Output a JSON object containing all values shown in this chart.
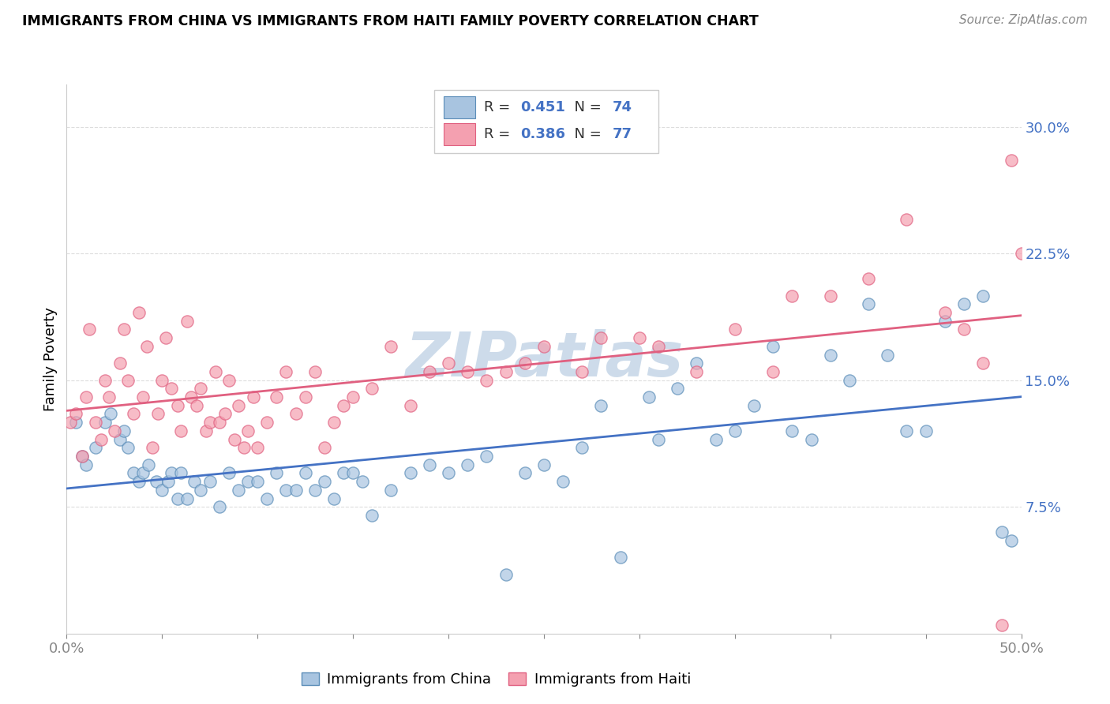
{
  "title": "IMMIGRANTS FROM CHINA VS IMMIGRANTS FROM HAITI FAMILY POVERTY CORRELATION CHART",
  "source": "Source: ZipAtlas.com",
  "ylabel": "Family Poverty",
  "yticks": [
    7.5,
    15.0,
    22.5,
    30.0
  ],
  "ytick_labels": [
    "7.5%",
    "15.0%",
    "22.5%",
    "30.0%"
  ],
  "xlim": [
    0.0,
    50.0
  ],
  "ylim": [
    0.0,
    32.5
  ],
  "china_R": 0.451,
  "china_N": 74,
  "haiti_R": 0.386,
  "haiti_N": 77,
  "china_color": "#A8C4E0",
  "haiti_color": "#F4A0B0",
  "china_edge_color": "#5B8DB8",
  "haiti_edge_color": "#E06080",
  "china_line_color": "#4472C4",
  "haiti_line_color": "#E06080",
  "watermark_color": "#C8D8E8",
  "background_color": "#FFFFFF",
  "grid_color": "#DDDDDD",
  "china_points_x": [
    0.5,
    0.8,
    1.0,
    1.5,
    2.0,
    2.3,
    2.8,
    3.0,
    3.2,
    3.5,
    3.8,
    4.0,
    4.3,
    4.7,
    5.0,
    5.3,
    5.5,
    5.8,
    6.0,
    6.3,
    6.7,
    7.0,
    7.5,
    8.0,
    8.5,
    9.0,
    9.5,
    10.0,
    10.5,
    11.0,
    11.5,
    12.0,
    12.5,
    13.0,
    13.5,
    14.0,
    14.5,
    15.0,
    15.5,
    16.0,
    17.0,
    18.0,
    19.0,
    20.0,
    21.0,
    22.0,
    23.0,
    24.0,
    25.0,
    26.0,
    27.0,
    28.0,
    29.0,
    30.5,
    31.0,
    32.0,
    33.0,
    34.0,
    35.0,
    36.0,
    37.0,
    38.0,
    39.0,
    40.0,
    41.0,
    42.0,
    43.0,
    44.0,
    45.0,
    46.0,
    47.0,
    48.0,
    49.0,
    49.5
  ],
  "china_points_y": [
    12.5,
    10.5,
    10.0,
    11.0,
    12.5,
    13.0,
    11.5,
    12.0,
    11.0,
    9.5,
    9.0,
    9.5,
    10.0,
    9.0,
    8.5,
    9.0,
    9.5,
    8.0,
    9.5,
    8.0,
    9.0,
    8.5,
    9.0,
    7.5,
    9.5,
    8.5,
    9.0,
    9.0,
    8.0,
    9.5,
    8.5,
    8.5,
    9.5,
    8.5,
    9.0,
    8.0,
    9.5,
    9.5,
    9.0,
    7.0,
    8.5,
    9.5,
    10.0,
    9.5,
    10.0,
    10.5,
    3.5,
    9.5,
    10.0,
    9.0,
    11.0,
    13.5,
    4.5,
    14.0,
    11.5,
    14.5,
    16.0,
    11.5,
    12.0,
    13.5,
    17.0,
    12.0,
    11.5,
    16.5,
    15.0,
    19.5,
    16.5,
    12.0,
    12.0,
    18.5,
    19.5,
    20.0,
    6.0,
    5.5
  ],
  "haiti_points_x": [
    0.2,
    0.5,
    0.8,
    1.0,
    1.2,
    1.5,
    1.8,
    2.0,
    2.2,
    2.5,
    2.8,
    3.0,
    3.2,
    3.5,
    3.8,
    4.0,
    4.2,
    4.5,
    4.8,
    5.0,
    5.2,
    5.5,
    5.8,
    6.0,
    6.3,
    6.5,
    6.8,
    7.0,
    7.3,
    7.5,
    7.8,
    8.0,
    8.3,
    8.5,
    8.8,
    9.0,
    9.3,
    9.5,
    9.8,
    10.0,
    10.5,
    11.0,
    11.5,
    12.0,
    12.5,
    13.0,
    13.5,
    14.0,
    14.5,
    15.0,
    16.0,
    17.0,
    18.0,
    19.0,
    20.0,
    21.0,
    22.0,
    23.0,
    24.0,
    25.0,
    27.0,
    28.0,
    30.0,
    31.0,
    33.0,
    35.0,
    37.0,
    38.0,
    40.0,
    42.0,
    44.0,
    46.0,
    47.0,
    48.0,
    49.0,
    49.5,
    50.0
  ],
  "haiti_points_y": [
    12.5,
    13.0,
    10.5,
    14.0,
    18.0,
    12.5,
    11.5,
    15.0,
    14.0,
    12.0,
    16.0,
    18.0,
    15.0,
    13.0,
    19.0,
    14.0,
    17.0,
    11.0,
    13.0,
    15.0,
    17.5,
    14.5,
    13.5,
    12.0,
    18.5,
    14.0,
    13.5,
    14.5,
    12.0,
    12.5,
    15.5,
    12.5,
    13.0,
    15.0,
    11.5,
    13.5,
    11.0,
    12.0,
    14.0,
    11.0,
    12.5,
    14.0,
    15.5,
    13.0,
    14.0,
    15.5,
    11.0,
    12.5,
    13.5,
    14.0,
    14.5,
    17.0,
    13.5,
    15.5,
    16.0,
    15.5,
    15.0,
    15.5,
    16.0,
    17.0,
    15.5,
    17.5,
    17.5,
    17.0,
    15.5,
    18.0,
    15.5,
    20.0,
    20.0,
    21.0,
    24.5,
    19.0,
    18.0,
    16.0,
    0.5,
    28.0,
    22.5
  ],
  "legend_china_label": "Immigrants from China",
  "legend_haiti_label": "Immigrants from Haiti"
}
